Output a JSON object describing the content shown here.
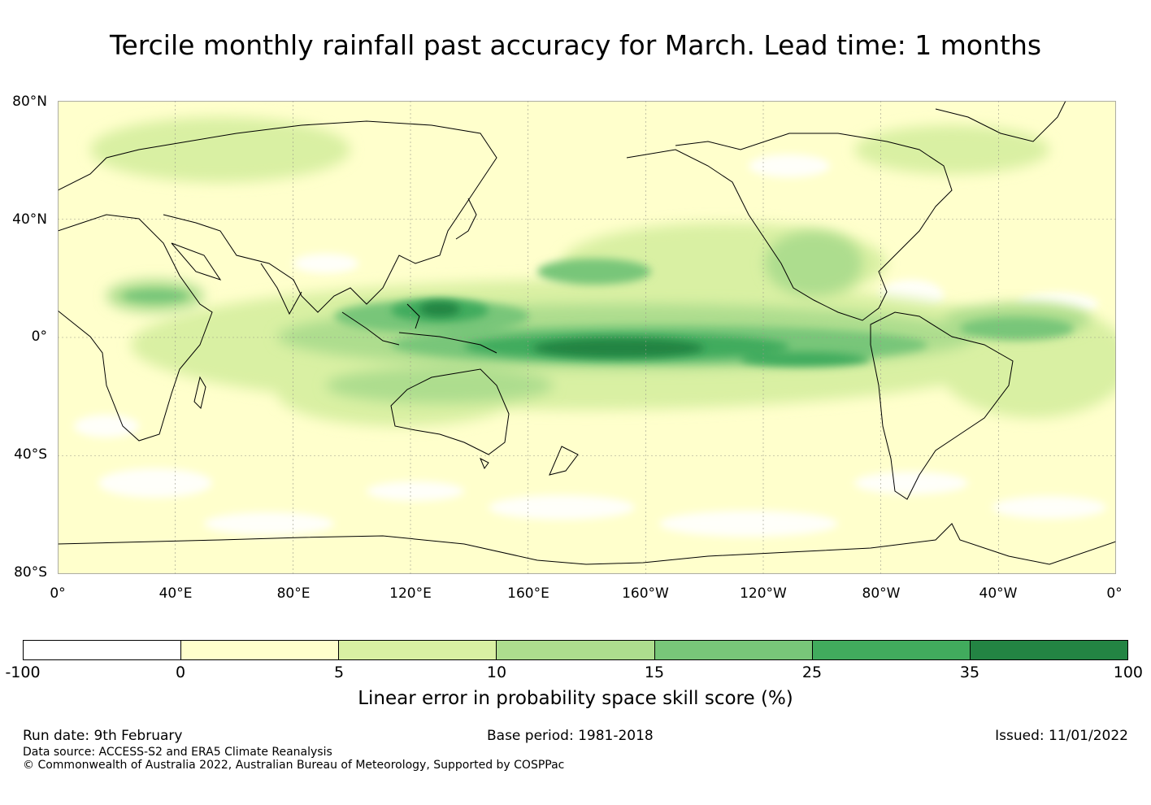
{
  "title": "Tercile monthly rainfall past accuracy for March. Lead time: 1 months",
  "map": {
    "lat_labels": [
      "80°N",
      "40°N",
      "0°",
      "40°S",
      "80°S"
    ],
    "lon_labels": [
      "0°",
      "40°E",
      "80°E",
      "120°E",
      "160°E",
      "160°W",
      "120°W",
      "80°W",
      "40°W",
      "0°"
    ],
    "land_color": "#ffffcc",
    "ocean_base_color": "#ffffcc"
  },
  "legend": {
    "colors": [
      "#ffffff",
      "#ffffcc",
      "#d9f0a3",
      "#addd8e",
      "#78c679",
      "#41ab5d",
      "#238443"
    ],
    "ticks": [
      "-100",
      "0",
      "5",
      "10",
      "15",
      "25",
      "35",
      "100"
    ],
    "label": "Linear error in probability space skill score (%)"
  },
  "footer": {
    "run_date": "Run date: 9th February",
    "base_period": "Base period: 1981-2018",
    "issued": "Issued: 11/01/2022",
    "data_source": "Data source: ACCESS-S2 and ERA5 Climate Reanalysis",
    "copyright": "© Commonwealth of Australia 2022, Australian Bureau of Meteorology, Supported by COSPPac"
  }
}
